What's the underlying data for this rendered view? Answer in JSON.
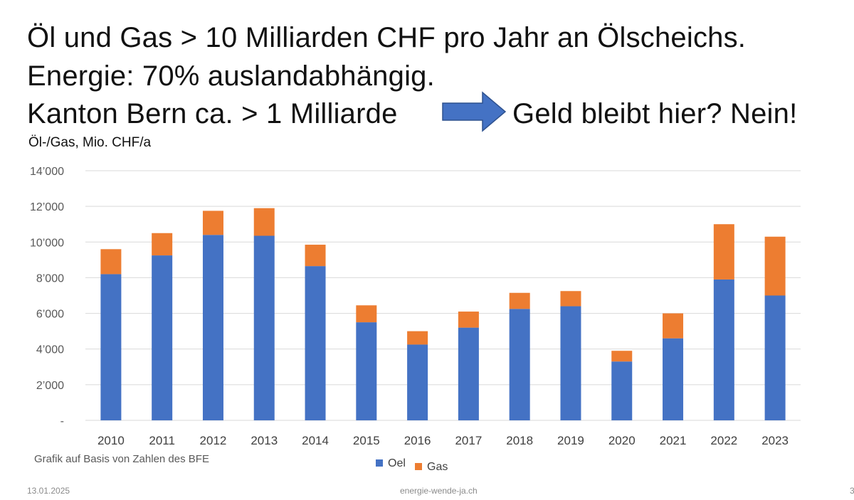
{
  "slide": {
    "headline_line1": "Öl und Gas > 10 Milliarden CHF pro Jahr an Ölscheichs.",
    "headline_line2": "Energie: 70% auslandabhängig.",
    "headline_line3a": "Kanton Bern ca. > 1 Milliarde",
    "headline_line3b": "Geld bleibt hier? Nein!",
    "source_note": "Grafik auf Basis von Zahlen des BFE",
    "footer_date": "13.01.2025",
    "footer_site": "energie-wende-ja.ch",
    "footer_page": "3"
  },
  "colors": {
    "oel": "#4472c4",
    "gas": "#ed7d31",
    "arrow": "#4472c4",
    "grid": "#d9d9d9"
  },
  "chart_data": {
    "type": "bar",
    "stacked": true,
    "title": "Öl-/Gas, Mio. CHF/a",
    "categories": [
      "2010",
      "2011",
      "2012",
      "2013",
      "2014",
      "2015",
      "2016",
      "2017",
      "2018",
      "2019",
      "2020",
      "2021",
      "2022",
      "2023"
    ],
    "series": [
      {
        "name": "Oel",
        "values": [
          8200,
          9250,
          10400,
          10350,
          8650,
          5500,
          4250,
          5200,
          6250,
          6400,
          3300,
          4600,
          7900,
          7000
        ]
      },
      {
        "name": "Gas",
        "values": [
          1400,
          1250,
          1350,
          1550,
          1200,
          950,
          750,
          900,
          900,
          850,
          600,
          1400,
          3100,
          3300
        ]
      }
    ],
    "ylim": [
      0,
      14000
    ],
    "yticks": [
      "-",
      "2’000",
      "4’000",
      "6’000",
      "8’000",
      "10’000",
      "12’000",
      "14’000"
    ],
    "grid": true,
    "legend": "bottom-center"
  }
}
